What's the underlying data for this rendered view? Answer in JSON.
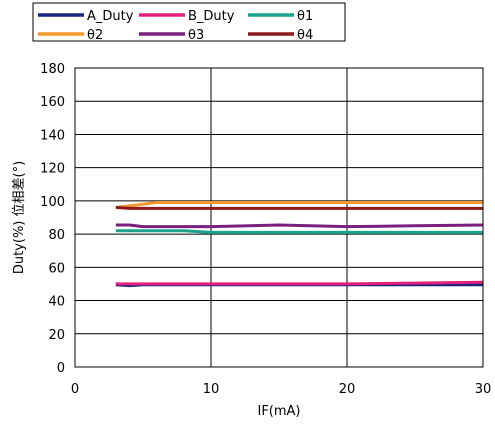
{
  "chart_data": {
    "type": "line",
    "xlabel": "IF(mA)",
    "ylabel": "Duty(%)  位相差(°)",
    "xlim": [
      0,
      30
    ],
    "ylim": [
      0,
      180
    ],
    "xticks": [
      0,
      10,
      20,
      30
    ],
    "yticks": [
      0,
      20,
      40,
      60,
      80,
      100,
      120,
      140,
      160,
      180
    ],
    "grid": true,
    "legend_position": "top",
    "series": [
      {
        "name": "A_Duty",
        "color": "#1a237e",
        "x": [
          3,
          4,
          5,
          10,
          15,
          20,
          25,
          30
        ],
        "y": [
          49.5,
          49,
          49.5,
          49.5,
          49.5,
          49.5,
          49.5,
          49.5
        ]
      },
      {
        "name": "B_Duty",
        "color": "#e0207a",
        "x": [
          3,
          4,
          5,
          10,
          15,
          20,
          25,
          30
        ],
        "y": [
          50,
          50,
          50,
          50,
          50,
          50,
          50.5,
          51
        ]
      },
      {
        "name": "θ1",
        "color": "#1aa38a",
        "x": [
          3,
          4,
          5,
          6,
          7,
          8,
          10,
          15,
          20,
          25,
          30
        ],
        "y": [
          82,
          82,
          82,
          82,
          82,
          82,
          81,
          81,
          81,
          81,
          81
        ]
      },
      {
        "name": "θ2",
        "color": "#f39a2e",
        "x": [
          3,
          4,
          5,
          6,
          10,
          15,
          20,
          25,
          30
        ],
        "y": [
          96,
          97,
          98,
          99,
          99,
          99,
          99,
          99,
          99
        ]
      },
      {
        "name": "θ3",
        "color": "#7b1f7f",
        "x": [
          3,
          4,
          5,
          10,
          15,
          20,
          25,
          30
        ],
        "y": [
          85.5,
          85.5,
          84.5,
          84.5,
          85.5,
          84.5,
          85,
          85.5
        ]
      },
      {
        "name": "θ4",
        "color": "#8b1a1a",
        "x": [
          3,
          4,
          5,
          10,
          15,
          20,
          25,
          30
        ],
        "y": [
          96,
          95.5,
          95.5,
          95.5,
          95.5,
          95.5,
          95.5,
          95.5
        ]
      }
    ]
  }
}
